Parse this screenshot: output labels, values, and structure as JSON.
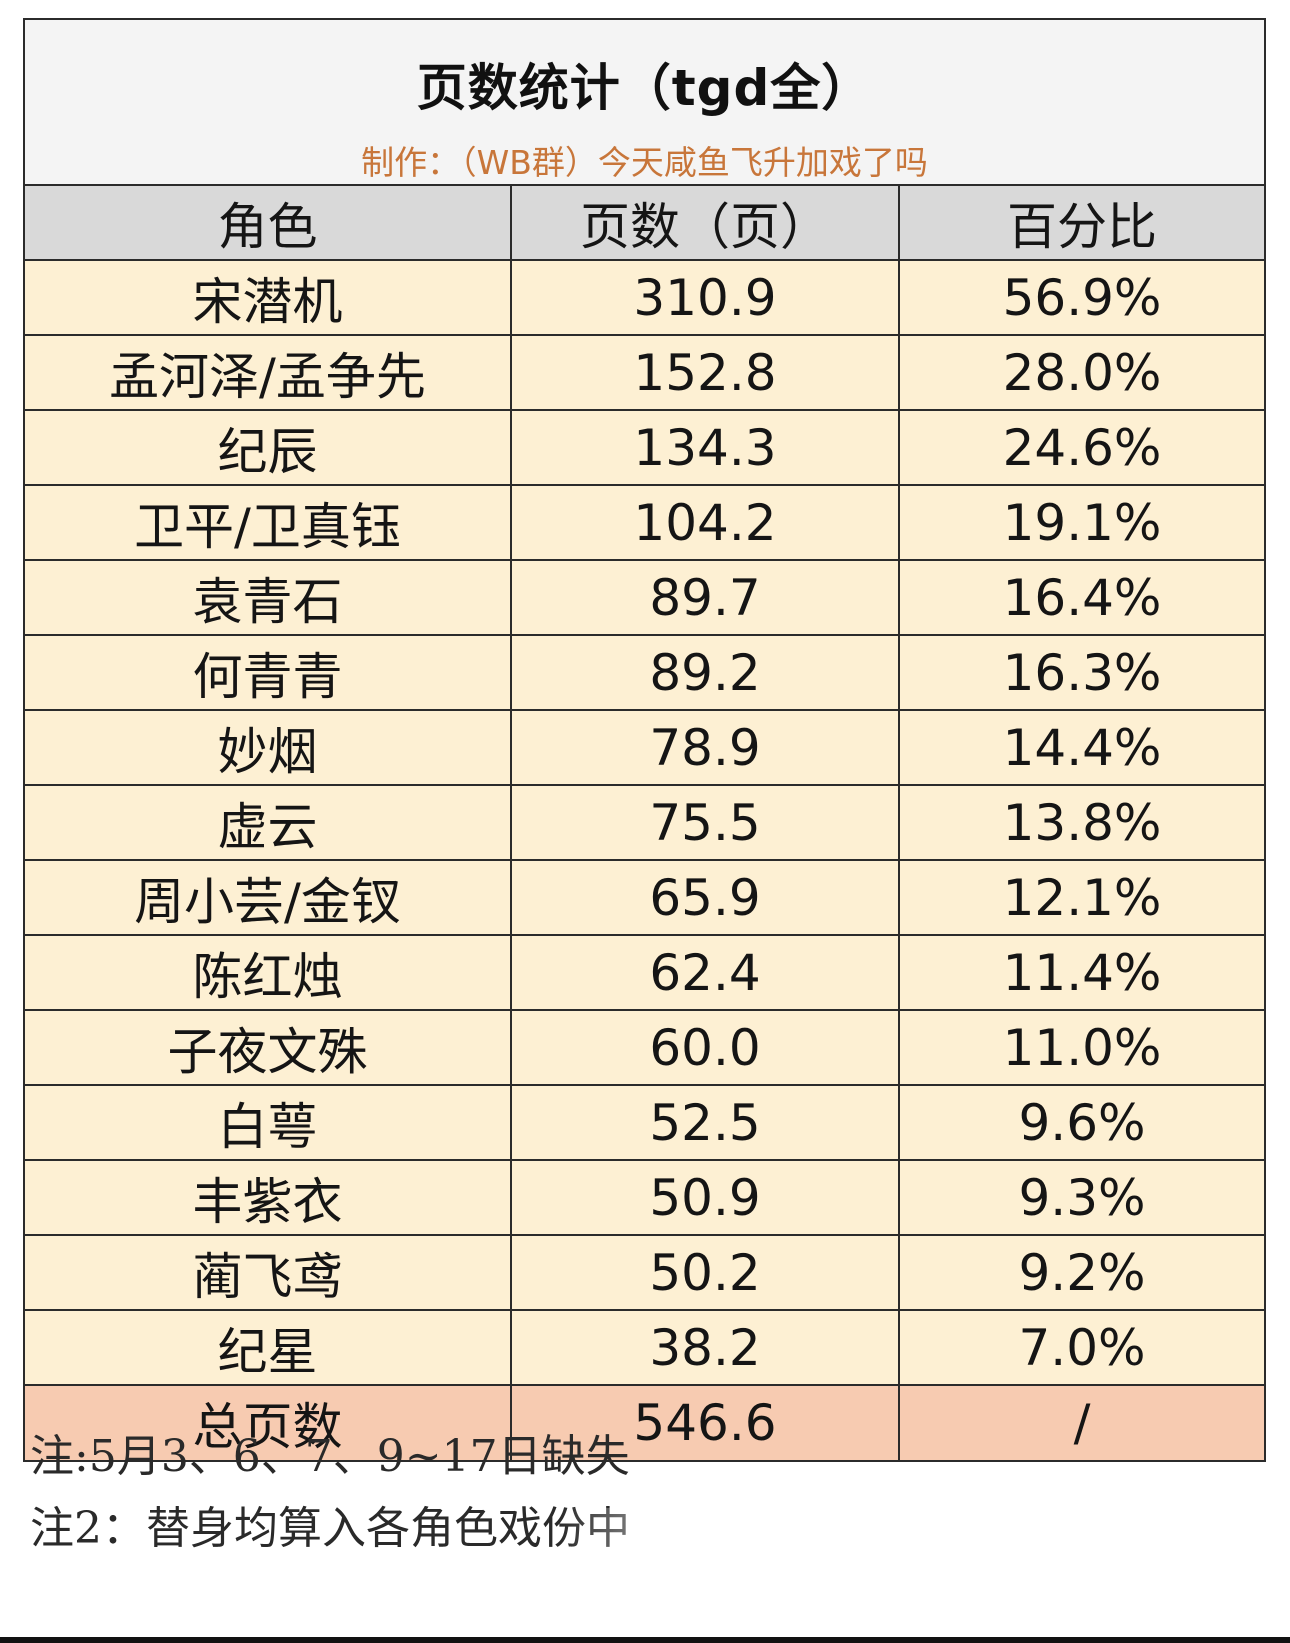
{
  "title": "页数统计（tgd全）",
  "subtitle": "制作：（WB群）今天咸鱼飞升加戏了吗",
  "columns": [
    "角色",
    "页数（页）",
    "百分比"
  ],
  "rows": [
    {
      "name": "宋潜机",
      "pages": "310.9",
      "percent": "56.9%"
    },
    {
      "name": "孟河泽/孟争先",
      "pages": "152.8",
      "percent": "28.0%"
    },
    {
      "name": "纪辰",
      "pages": "134.3",
      "percent": "24.6%"
    },
    {
      "name": "卫平/卫真钰",
      "pages": "104.2",
      "percent": "19.1%"
    },
    {
      "name": "袁青石",
      "pages": "89.7",
      "percent": "16.4%"
    },
    {
      "name": "何青青",
      "pages": "89.2",
      "percent": "16.3%"
    },
    {
      "name": "妙烟",
      "pages": "78.9",
      "percent": "14.4%"
    },
    {
      "name": "虚云",
      "pages": "75.5",
      "percent": "13.8%"
    },
    {
      "name": "周小芸/金钗",
      "pages": "65.9",
      "percent": "12.1%"
    },
    {
      "name": "陈红烛",
      "pages": "62.4",
      "percent": "11.4%"
    },
    {
      "name": "子夜文殊",
      "pages": "60.0",
      "percent": "11.0%"
    },
    {
      "name": "白萼",
      "pages": "52.5",
      "percent": "9.6%"
    },
    {
      "name": "丰紫衣",
      "pages": "50.9",
      "percent": "9.3%"
    },
    {
      "name": "蔺飞鸢",
      "pages": "50.2",
      "percent": "9.2%"
    },
    {
      "name": "纪星",
      "pages": "38.2",
      "percent": "7.0%"
    }
  ],
  "total": {
    "label": "总页数",
    "pages": "546.6",
    "percent": "/"
  },
  "notes": [
    "注:5月3、6、7、9~17日缺失",
    "注2：替身均算入各角色戏份中"
  ],
  "colors": {
    "header_bg": "#d9d9d9",
    "row_bg": "#fdf0d3",
    "total_bg": "#f7cbb1",
    "subtitle": "#c8763a",
    "title_bg": "#f4f4f4"
  }
}
